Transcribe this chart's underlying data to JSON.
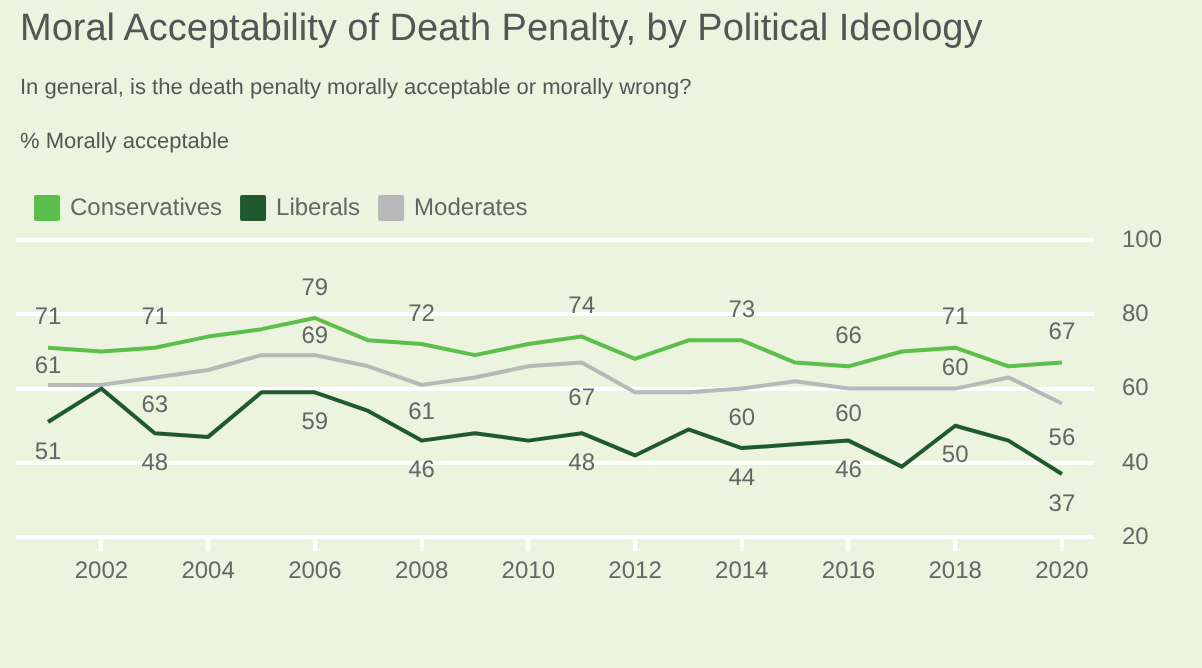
{
  "chart_data": {
    "type": "line",
    "title": "Moral Acceptability of Death Penalty, by Political Ideology",
    "subtitle": "In general, is the death penalty morally acceptable or morally wrong?",
    "ylabel": "% Morally acceptable",
    "x": [
      2001,
      2002,
      2003,
      2004,
      2005,
      2006,
      2007,
      2008,
      2009,
      2010,
      2011,
      2012,
      2013,
      2014,
      2015,
      2016,
      2017,
      2018,
      2019,
      2020
    ],
    "series": [
      {
        "name": "Conservatives",
        "color": "#5cbf4b",
        "values": [
          71,
          70,
          71,
          74,
          76,
          79,
          73,
          72,
          69,
          72,
          74,
          68,
          73,
          73,
          67,
          66,
          70,
          71,
          66,
          67
        ],
        "value_labels": [
          "71",
          null,
          "71",
          null,
          null,
          "79",
          null,
          "72",
          null,
          null,
          "74",
          null,
          null,
          "73",
          null,
          "66",
          null,
          "71",
          null,
          "67"
        ]
      },
      {
        "name": "Liberals",
        "color": "#1f5a2f",
        "values": [
          51,
          60,
          48,
          47,
          59,
          59,
          54,
          46,
          48,
          46,
          48,
          42,
          49,
          44,
          45,
          46,
          39,
          50,
          46,
          37
        ],
        "value_labels": [
          "51",
          null,
          "48",
          null,
          null,
          "59",
          null,
          "46",
          null,
          null,
          "48",
          null,
          null,
          "44",
          null,
          "46",
          null,
          "50",
          null,
          "37"
        ]
      },
      {
        "name": "Moderates",
        "color": "#b8b8b8",
        "values": [
          61,
          61,
          63,
          65,
          69,
          69,
          66,
          61,
          63,
          66,
          67,
          59,
          59,
          60,
          62,
          60,
          60,
          60,
          63,
          56
        ],
        "value_labels": [
          "61",
          null,
          "63",
          null,
          null,
          "69",
          null,
          "61",
          null,
          null,
          "67",
          null,
          null,
          "60",
          null,
          "60",
          null,
          "60",
          null,
          "56"
        ]
      }
    ],
    "xlim": [
      2000.4,
      2020.6
    ],
    "xticks": [
      2002,
      2004,
      2006,
      2008,
      2010,
      2012,
      2014,
      2016,
      2018,
      2020
    ],
    "ylim": [
      20,
      100
    ],
    "yticks": [
      20,
      40,
      60,
      80,
      100
    ],
    "grid": "y",
    "legend": "top left",
    "marker": "none",
    "line_style": "solid"
  }
}
